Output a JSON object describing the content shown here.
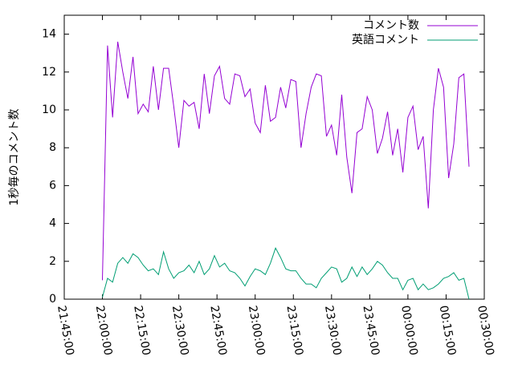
{
  "chart_data": {
    "type": "line",
    "ylabel": "1秒毎のコメント数",
    "x": [
      "22:00:00",
      "22:02:00",
      "22:04:00",
      "22:06:00",
      "22:08:00",
      "22:10:00",
      "22:12:00",
      "22:14:00",
      "22:16:00",
      "22:18:00",
      "22:20:00",
      "22:22:00",
      "22:24:00",
      "22:26:00",
      "22:28:00",
      "22:30:00",
      "22:32:00",
      "22:34:00",
      "22:36:00",
      "22:38:00",
      "22:40:00",
      "22:42:00",
      "22:44:00",
      "22:46:00",
      "22:48:00",
      "22:50:00",
      "22:52:00",
      "22:54:00",
      "22:56:00",
      "22:58:00",
      "23:00:00",
      "23:02:00",
      "23:04:00",
      "23:06:00",
      "23:08:00",
      "23:10:00",
      "23:12:00",
      "23:14:00",
      "23:16:00",
      "23:18:00",
      "23:20:00",
      "23:22:00",
      "23:24:00",
      "23:26:00",
      "23:28:00",
      "23:30:00",
      "23:32:00",
      "23:34:00",
      "23:36:00",
      "23:38:00",
      "23:40:00",
      "23:42:00",
      "23:44:00",
      "23:46:00",
      "23:48:00",
      "23:50:00",
      "23:52:00",
      "23:54:00",
      "23:56:00",
      "23:58:00",
      "00:00:00",
      "00:02:00",
      "00:04:00",
      "00:06:00",
      "00:08:00",
      "00:10:00",
      "00:12:00",
      "00:14:00",
      "00:16:00",
      "00:18:00",
      "00:20:00",
      "00:22:00",
      "00:24:00"
    ],
    "series": [
      {
        "name": "コメント数",
        "color": "#9400d3",
        "values": [
          1.0,
          13.4,
          9.6,
          13.6,
          12.0,
          10.6,
          12.8,
          9.8,
          10.3,
          9.9,
          12.3,
          10.0,
          12.2,
          12.2,
          10.2,
          8.0,
          10.5,
          10.2,
          10.4,
          9.0,
          11.9,
          9.8,
          11.8,
          12.3,
          10.6,
          10.3,
          11.9,
          11.8,
          10.7,
          11.1,
          9.3,
          8.8,
          11.3,
          9.4,
          9.6,
          11.2,
          10.1,
          11.6,
          11.5,
          8.0,
          9.8,
          11.2,
          11.9,
          11.8,
          8.6,
          9.2,
          7.6,
          10.8,
          7.5,
          5.6,
          8.8,
          9.0,
          10.7,
          10.0,
          7.7,
          8.5,
          9.9,
          7.6,
          9.0,
          6.7,
          9.6,
          10.2,
          7.9,
          8.6,
          4.8,
          10.0,
          12.2,
          11.2,
          6.4,
          8.2,
          11.7,
          11.9,
          7.0
        ]
      },
      {
        "name": "英語コメント",
        "color": "#009e73",
        "values": [
          0.1,
          1.1,
          0.9,
          1.9,
          2.2,
          1.9,
          2.4,
          2.2,
          1.8,
          1.5,
          1.6,
          1.3,
          2.5,
          1.6,
          1.1,
          1.4,
          1.5,
          1.8,
          1.4,
          2.0,
          1.3,
          1.6,
          2.3,
          1.7,
          1.9,
          1.5,
          1.4,
          1.1,
          0.7,
          1.2,
          1.6,
          1.5,
          1.3,
          1.9,
          2.7,
          2.2,
          1.6,
          1.5,
          1.5,
          1.1,
          0.8,
          0.8,
          0.6,
          1.1,
          1.4,
          1.7,
          1.6,
          0.9,
          1.1,
          1.7,
          1.2,
          1.7,
          1.3,
          1.6,
          2.0,
          1.8,
          1.4,
          1.1,
          1.1,
          0.5,
          1.0,
          1.1,
          0.5,
          0.8,
          0.5,
          0.6,
          0.8,
          1.1,
          1.2,
          1.4,
          1.0,
          1.1,
          0.0
        ]
      }
    ],
    "xlim": [
      "21:45:00",
      "00:30:00"
    ],
    "xticks": [
      "21:45:00",
      "22:00:00",
      "22:15:00",
      "22:30:00",
      "22:45:00",
      "23:00:00",
      "23:15:00",
      "23:30:00",
      "23:45:00",
      "00:00:00",
      "00:15:00",
      "00:30:00"
    ],
    "ylim": [
      0,
      15
    ],
    "yticks": [
      0,
      2,
      4,
      6,
      8,
      10,
      12,
      14
    ],
    "legend": "top-right"
  }
}
